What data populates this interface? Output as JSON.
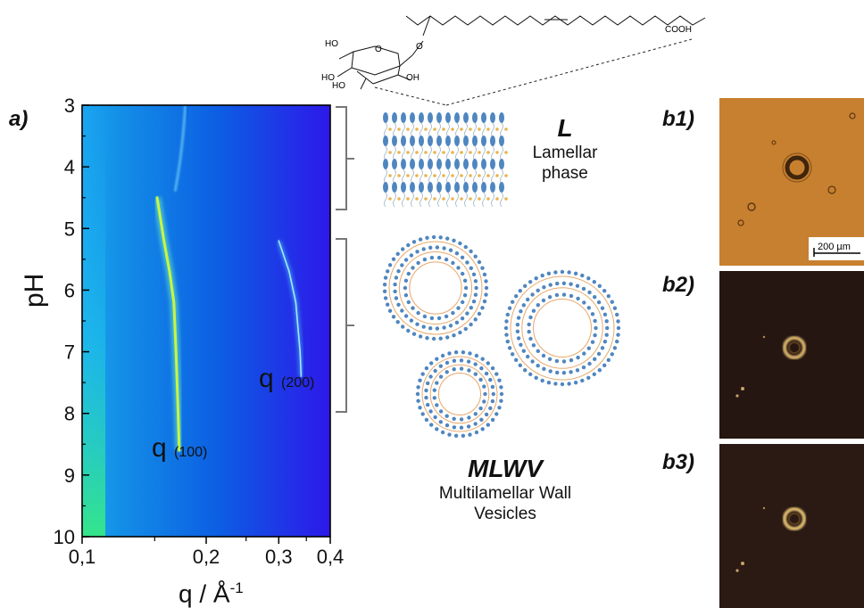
{
  "panel_a": {
    "label": "a)",
    "y_axis_label": "pH",
    "x_axis_label": "q / Å",
    "x_axis_label_exp": "-1",
    "y_ticks": [
      "3",
      "4",
      "5",
      "6",
      "7",
      "8",
      "9",
      "10"
    ],
    "x_ticks": [
      "0,1",
      "0,2",
      "0,3",
      "0,4"
    ],
    "peak_labels": {
      "q100": {
        "main": "q",
        "sub": "(100)"
      },
      "q200": {
        "main": "q",
        "sub": "(200)"
      }
    }
  },
  "chart_data": {
    "type": "heatmap",
    "xlabel": "q / Å-1",
    "ylabel": "pH",
    "xlim": [
      0.1,
      0.4
    ],
    "x_scale": "log",
    "ylim": [
      10,
      3
    ],
    "x_ticks": [
      0.1,
      0.2,
      0.3,
      0.4
    ],
    "y_ticks": [
      3,
      4,
      5,
      6,
      7,
      8,
      9,
      10
    ],
    "series": [
      {
        "name": "q (100)",
        "points": [
          [
            0.152,
            4.5
          ],
          [
            0.158,
            5.2
          ],
          [
            0.163,
            5.7
          ],
          [
            0.167,
            6.2
          ],
          [
            0.169,
            7.0
          ],
          [
            0.171,
            8.0
          ],
          [
            0.172,
            8.6
          ]
        ]
      },
      {
        "name": "q (200)",
        "points": [
          [
            0.3,
            5.2
          ],
          [
            0.318,
            5.7
          ],
          [
            0.33,
            6.2
          ],
          [
            0.338,
            7.0
          ],
          [
            0.34,
            7.4
          ]
        ]
      }
    ]
  },
  "chemistry": {
    "cooh": "COOH",
    "oh_labels": [
      "HO",
      "HO",
      "HO",
      "OH"
    ],
    "o_labels": [
      "O",
      "O"
    ]
  },
  "phases": {
    "lamellar": {
      "abbr": "L",
      "name_line1": "Lamellar",
      "name_line2": "phase"
    },
    "vesicles": {
      "abbr": "MLWV",
      "name_line1": "Multilamellar Wall",
      "name_line2": "Vesicles"
    }
  },
  "panel_b": {
    "b1": {
      "label": "b1)",
      "scale_bar": "200 µm"
    },
    "b2": {
      "label": "b2)"
    },
    "b3": {
      "label": "b3)"
    }
  }
}
